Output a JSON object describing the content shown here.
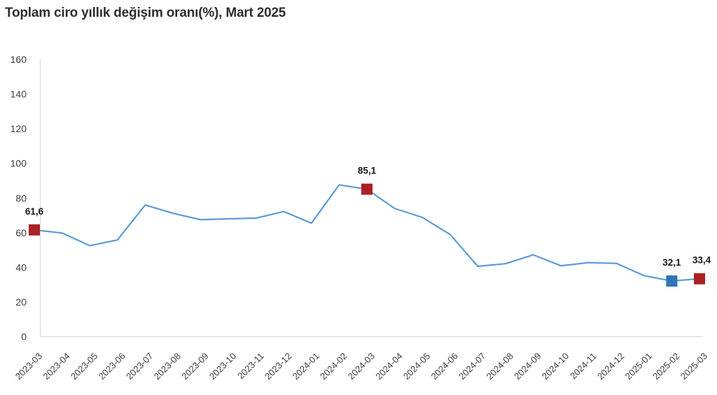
{
  "title": "Toplam ciro yıllık değişim oranı(%), Mart 2025",
  "chart_data": {
    "type": "line",
    "title": "Toplam ciro yıllık değişim oranı(%), Mart 2025",
    "categories": [
      "2023-03",
      "2023-04",
      "2023-05",
      "2023-06",
      "2023-07",
      "2023-08",
      "2023-09",
      "2023-10",
      "2023-11",
      "2023-12",
      "2024-01",
      "2024-02",
      "2024-03",
      "2024-04",
      "2024-05",
      "2024-06",
      "2024-07",
      "2024-08",
      "2024-09",
      "2024-10",
      "2024-11",
      "2024-12",
      "2025-01",
      "2025-02",
      "2025-03"
    ],
    "values": [
      61.6,
      59.8,
      52.5,
      55.8,
      76.0,
      71.2,
      67.5,
      68.0,
      68.4,
      72.2,
      65.5,
      87.6,
      85.1,
      74.0,
      68.8,
      59.0,
      40.6,
      42.1,
      47.2,
      40.9,
      42.7,
      42.3,
      35.2,
      32.1,
      33.4
    ],
    "xlabel": "",
    "ylabel": "",
    "ylim": [
      0,
      160
    ],
    "yticks": [
      0,
      20,
      40,
      60,
      80,
      100,
      120,
      140,
      160
    ],
    "grid": false,
    "legend": "none",
    "marker_points": [
      {
        "index": 0,
        "label": "61,6",
        "color": "#AC2025"
      },
      {
        "index": 12,
        "label": "85,1",
        "color": "#AC2025"
      },
      {
        "index": 23,
        "label": "32,1",
        "color": "#2E75B6"
      },
      {
        "index": 24,
        "label": "33,4",
        "color": "#AC2025"
      }
    ],
    "colors": {
      "line": "#5B9BD5",
      "axis": "#D4D4D4",
      "tick_text": "#3d3d3d",
      "data_label_text": "#151515",
      "marker_red": "#AC2025",
      "marker_blue": "#2E75B6"
    }
  }
}
